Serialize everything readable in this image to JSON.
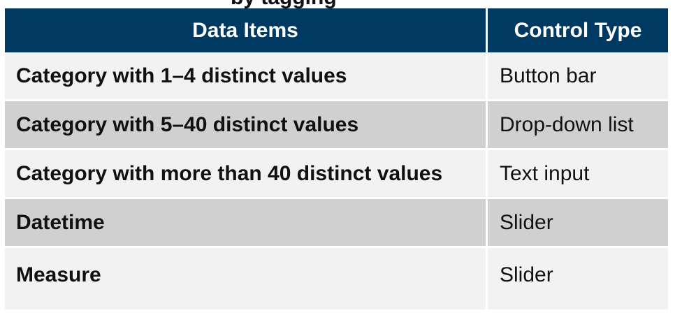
{
  "top_fragment": "by tagging",
  "table": {
    "headers": [
      "Data Items",
      "Control Type"
    ],
    "rows": [
      {
        "item": "Category with 1–4 distinct values",
        "control": "Button bar"
      },
      {
        "item": "Category with 5–40 distinct values",
        "control": "Drop-down list"
      },
      {
        "item": "Category with more than 40 distinct values",
        "control": "Text input"
      },
      {
        "item": "Datetime",
        "control": "Slider"
      },
      {
        "item": "Measure",
        "control": "Slider"
      }
    ]
  },
  "colors": {
    "header_bg": "#003a63",
    "row_light": "#f2f2f2",
    "row_dark": "#d0d0d0"
  }
}
